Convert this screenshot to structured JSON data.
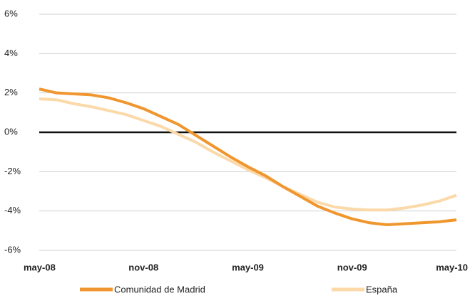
{
  "chart_data": {
    "type": "line",
    "categories": [
      "may-08",
      null,
      null,
      null,
      null,
      null,
      "nov-08",
      null,
      null,
      null,
      null,
      null,
      "may-09",
      null,
      null,
      null,
      null,
      null,
      "nov-09",
      null,
      null,
      null,
      null,
      null,
      "may-10"
    ],
    "series": [
      {
        "name": "Comunidad de Madrid",
        "color": "#f0962e",
        "values": [
          2.2,
          2.0,
          1.95,
          1.9,
          1.75,
          1.5,
          1.2,
          0.8,
          0.4,
          -0.15,
          -0.7,
          -1.25,
          -1.75,
          -2.2,
          -2.75,
          -3.25,
          -3.75,
          -4.1,
          -4.4,
          -4.6,
          -4.7,
          -4.65,
          -4.6,
          -4.55,
          -4.45
        ]
      },
      {
        "name": "España",
        "color": "#fbd9a9",
        "values": [
          1.7,
          1.65,
          1.45,
          1.3,
          1.1,
          0.9,
          0.6,
          0.3,
          -0.1,
          -0.5,
          -1.0,
          -1.45,
          -1.9,
          -2.3,
          -2.75,
          -3.15,
          -3.55,
          -3.8,
          -3.9,
          -3.95,
          -3.95,
          -3.85,
          -3.7,
          -3.5,
          -3.2
        ]
      }
    ],
    "ylim": [
      -6,
      6
    ],
    "yticks": [
      {
        "value": -6,
        "label": "-6%"
      },
      {
        "value": -4,
        "label": "-4%"
      },
      {
        "value": -2,
        "label": "-2%"
      },
      {
        "value": 0,
        "label": "0%"
      },
      {
        "value": 2,
        "label": "2%"
      },
      {
        "value": 4,
        "label": "4%"
      },
      {
        "value": 6,
        "label": "6%"
      }
    ],
    "grid": true,
    "legend": "bottom"
  }
}
